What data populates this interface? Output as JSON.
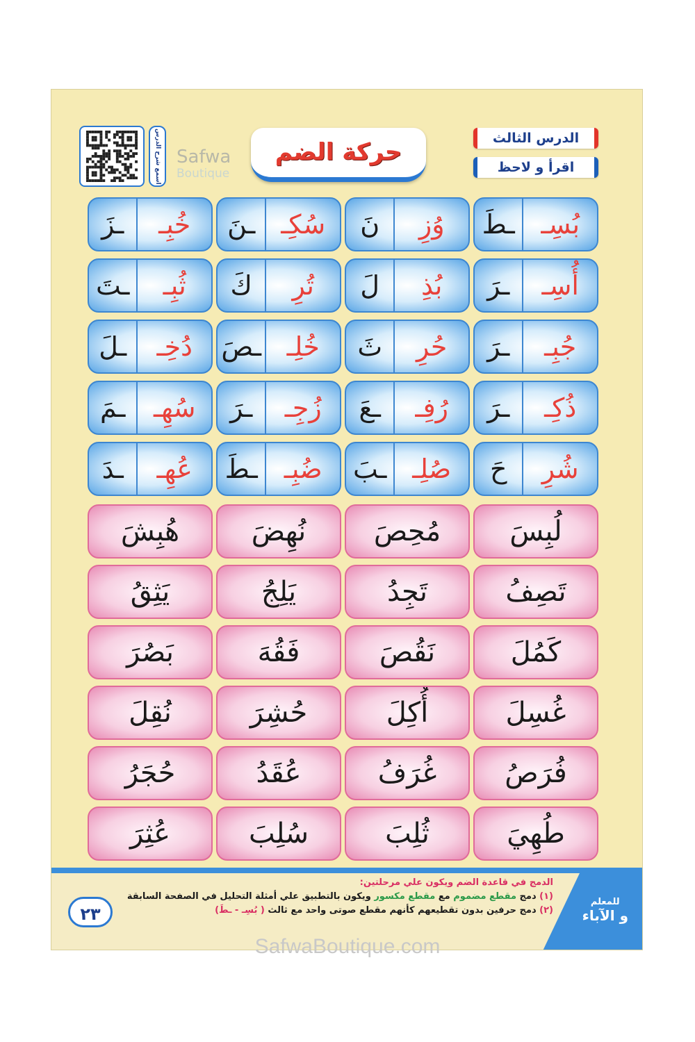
{
  "header": {
    "lesson_number": "الدرس الثالث",
    "instruction": "اقرأ و لاحظ",
    "title": "حركة الضم",
    "qr_label": "اسمع شرح الدرس",
    "logo": "Safwa Boutique",
    "logo_line1": "Safwa",
    "logo_line2": "Boutique"
  },
  "blue_rows": [
    [
      {
        "a": "بُسِـ",
        "b": "ـطَ"
      },
      {
        "a": "وُزِ",
        "b": "نَ"
      },
      {
        "a": "سُكِـ",
        "b": "ـنَ"
      },
      {
        "a": "خُبِـ",
        "b": "ـزَ"
      }
    ],
    [
      {
        "a": "أُسِـ",
        "b": "ـرَ"
      },
      {
        "a": "بُذِ",
        "b": "لَ"
      },
      {
        "a": "تُرِ",
        "b": "كَ"
      },
      {
        "a": "ثُبِـ",
        "b": "ـتَ"
      }
    ],
    [
      {
        "a": "جُبِـ",
        "b": "ـرَ"
      },
      {
        "a": "حُرِ",
        "b": "ثَ"
      },
      {
        "a": "خُلِـ",
        "b": "ـصَ"
      },
      {
        "a": "دُخِـ",
        "b": "ـلَ"
      }
    ],
    [
      {
        "a": "ذُكِـ",
        "b": "ـرَ"
      },
      {
        "a": "رُفِـ",
        "b": "ـعَ"
      },
      {
        "a": "زُجِـ",
        "b": "ـرَ"
      },
      {
        "a": "سُهِـ",
        "b": "ـمَ"
      }
    ],
    [
      {
        "a": "شُرِ",
        "b": "حَ"
      },
      {
        "a": "صُلِـ",
        "b": "ـبَ"
      },
      {
        "a": "ضُبِـ",
        "b": "ـطَ"
      },
      {
        "a": "عُهِـ",
        "b": "ـدَ"
      }
    ]
  ],
  "pink_rows": [
    [
      "لُبِسَ",
      "مُحِصَ",
      "نُهِضَ",
      "هُبِشَ"
    ],
    [
      "تَصِفُ",
      "تَجِدُ",
      "يَلِجُ",
      "يَثِقُ"
    ],
    [
      "كَمُلَ",
      "نَقُصَ",
      "فَقُهَ",
      "بَصُرَ"
    ],
    [
      "غُسِلَ",
      "أُكِلَ",
      "حُشِرَ",
      "نُقِلَ"
    ],
    [
      "فُرَصُ",
      "غُرَفُ",
      "عُقَدُ",
      "حُجَرُ"
    ],
    [
      "طُهِيَ",
      "ثُلِبَ",
      "سُلِبَ",
      "عُثِرَ"
    ]
  ],
  "footer": {
    "heading": "الدمج في قاعدة الضم ويكون علي مرحلتين:",
    "step1_num": "(١)",
    "step1_a": "دمج",
    "step1_b": "مقطع مضموم",
    "step1_c": "مع",
    "step1_d": "مقطع مكسور",
    "step1_e": "ويكون بالتطبيق علي أمثلة التحليل في الصفحة السابقة",
    "step2_num": "(٢)",
    "step2_text": "دمج حرفين بدون تقطيعهم كأنهم مقطع صوتى واحد مع ثالث",
    "step2_example": "( بُسِـ - ـطَ)",
    "audience_small": "للمعلم",
    "audience_large": "و الآباء",
    "page_number": "٢٣"
  },
  "watermark": "SafwaBoutique.com",
  "colors": {
    "page": "#f6ebb4",
    "blue": "#3d86d0",
    "pink": "#e06b9a",
    "red": "#e8413a"
  }
}
